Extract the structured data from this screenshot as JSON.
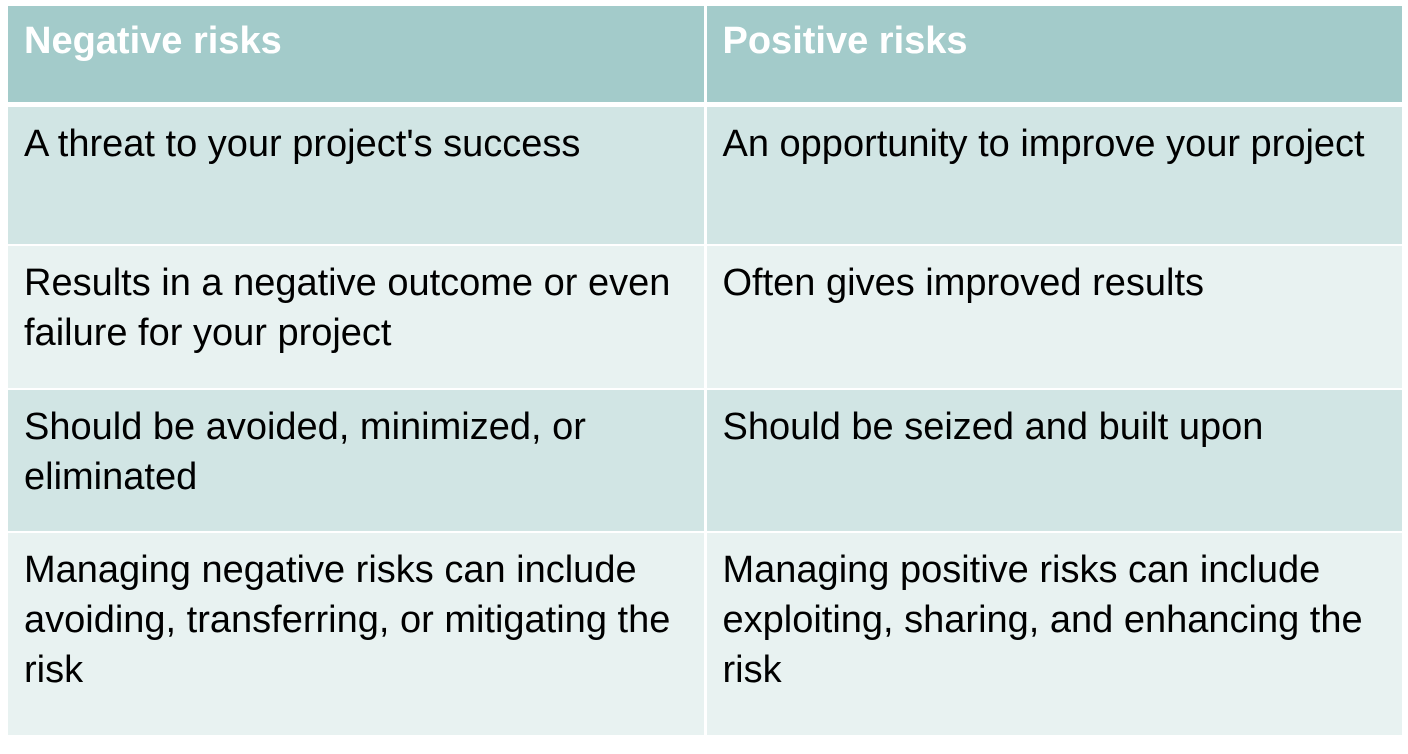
{
  "table": {
    "headers": {
      "negative": "Negative risks",
      "positive": "Positive risks"
    },
    "rows": [
      {
        "negative": "A threat to your project's success",
        "positive": "An opportunity to improve your project"
      },
      {
        "negative": "Results in a negative outcome or even failure for your project",
        "positive": "Often gives improved results"
      },
      {
        "negative": "Should be avoided, minimized, or eliminated",
        "positive": "Should be seized and built upon"
      },
      {
        "negative": "Managing negative risks can include avoiding, transferring, or mitigating the risk",
        "positive": "Managing positive risks can include exploiting, sharing, and enhancing the risk"
      }
    ]
  },
  "colors": {
    "header_background": "#a3cbca",
    "header_text": "#ffffff",
    "row_band_dark": "#d1e5e4",
    "row_band_light": "#e8f2f1",
    "body_text": "#000000"
  }
}
